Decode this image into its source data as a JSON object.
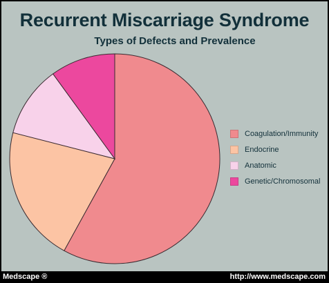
{
  "footer": {
    "left": "Medscape ®",
    "right": "http://www.medscape.com"
  },
  "chart_data": {
    "type": "pie",
    "title": "Recurrent Miscarriage Syndrome",
    "subtitle": "Types of Defects and Prevalence",
    "start_angle_deg": 0,
    "direction": "clockwise",
    "legend_position": "right",
    "slices": [
      {
        "label": "Coagulation/Immunity",
        "value": 58,
        "color": "#f08a8e"
      },
      {
        "label": "Endocrine",
        "value": 21,
        "color": "#fcc4a4"
      },
      {
        "label": "Anatomic",
        "value": 11,
        "color": "#f8d2ea"
      },
      {
        "label": "Genetic/Chromosomal",
        "value": 10,
        "color": "#ec489e"
      }
    ]
  }
}
